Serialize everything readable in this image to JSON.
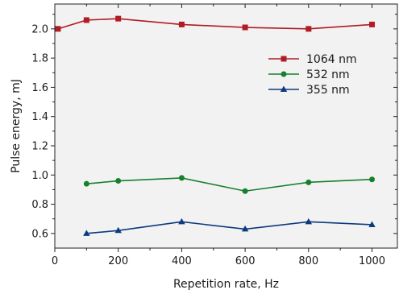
{
  "chart_data": {
    "type": "line",
    "xlabel": "Repetition rate, Hz",
    "ylabel": "Pulse energy, mJ",
    "xlim": [
      0,
      1080
    ],
    "ylim": [
      0.5,
      2.17
    ],
    "xticks": [
      0,
      200,
      400,
      600,
      800,
      1000
    ],
    "yticks": [
      0.6,
      0.8,
      1.0,
      1.2,
      1.4,
      1.6,
      1.8,
      2.0
    ],
    "ytick_labels": [
      "0.6",
      "0.8",
      "1.0",
      "1.2",
      "1.4",
      "1.6",
      "1.8",
      "2.0"
    ],
    "grid": false,
    "legend_position": "top-right",
    "background": "#f2f2f2",
    "series": [
      {
        "name": "1064 nm",
        "color": "#b01c24",
        "marker": "square",
        "x": [
          10,
          100,
          200,
          400,
          600,
          800,
          1000
        ],
        "y": [
          2.0,
          2.06,
          2.07,
          2.03,
          2.01,
          2.0,
          2.03
        ]
      },
      {
        "name": "532 nm",
        "color": "#17802c",
        "marker": "circle",
        "x": [
          100,
          200,
          400,
          600,
          800,
          1000
        ],
        "y": [
          0.94,
          0.96,
          0.98,
          0.89,
          0.95,
          0.97
        ]
      },
      {
        "name": "355 nm",
        "color": "#0d3a7e",
        "marker": "triangle",
        "x": [
          100,
          200,
          400,
          600,
          800,
          1000
        ],
        "y": [
          0.6,
          0.62,
          0.68,
          0.63,
          0.68,
          0.66
        ]
      }
    ]
  }
}
